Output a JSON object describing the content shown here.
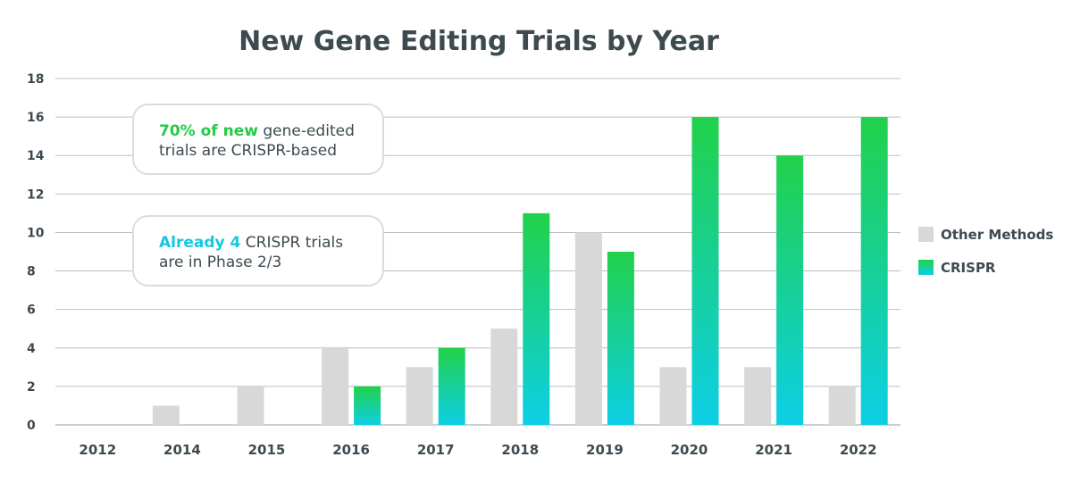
{
  "chart_data": {
    "type": "bar",
    "title": "New Gene Editing Trials by Year",
    "categories": [
      "2012",
      "2014",
      "2015",
      "2016",
      "2017",
      "2018",
      "2019",
      "2020",
      "2021",
      "2022"
    ],
    "series": [
      {
        "name": "Other Methods",
        "values": [
          0,
          1,
          2,
          4,
          3,
          5,
          10,
          3,
          3,
          2
        ]
      },
      {
        "name": "CRISPR",
        "values": [
          0,
          0,
          0,
          2,
          4,
          11,
          9,
          16,
          14,
          16
        ]
      }
    ],
    "ylim": [
      0,
      18
    ],
    "yticks": [
      0,
      2,
      4,
      6,
      8,
      10,
      12,
      14,
      16,
      18
    ],
    "grid": true,
    "legend_position": "right",
    "colors": {
      "other": "#d8d8d8",
      "crispr_top": "#22d14a",
      "crispr_bottom": "#0ccfe6",
      "highlight_green": "#22cc44",
      "highlight_cyan": "#14c8e0",
      "text": "#3d4a4f",
      "grid": "#b9bfc2"
    },
    "annotations": [
      {
        "highlight": "70% of new",
        "text_line1": " gene-edited",
        "text_line2": "trials are CRISPR-based"
      },
      {
        "highlight": "Already 4",
        "text_line1": " CRISPR trials",
        "text_line2": "are in Phase 2/3"
      }
    ]
  }
}
